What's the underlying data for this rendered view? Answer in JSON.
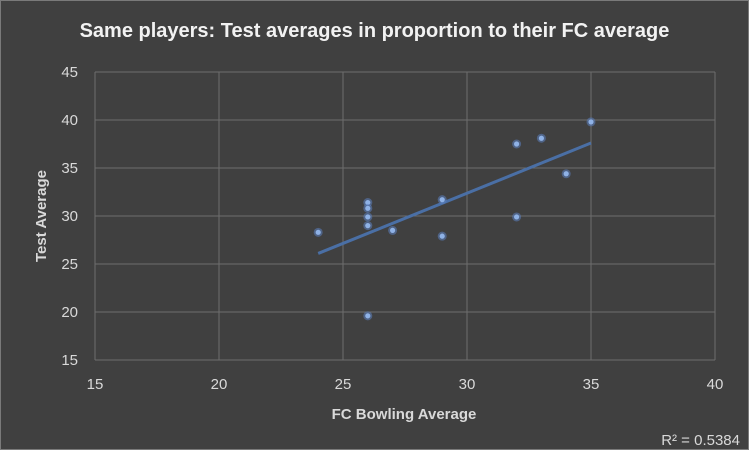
{
  "chart_data": {
    "type": "scatter",
    "title": "Same players: Test averages in proportion to their FC average",
    "xlabel": "FC Bowling Average",
    "ylabel": "Test Average",
    "xlim": [
      15,
      40
    ],
    "ylim": [
      15,
      45
    ],
    "xticks": [
      15,
      20,
      25,
      30,
      35,
      40
    ],
    "yticks": [
      15,
      20,
      25,
      30,
      35,
      40,
      45
    ],
    "grid": true,
    "points": [
      {
        "x": 24,
        "y": 28.3
      },
      {
        "x": 26,
        "y": 31.4
      },
      {
        "x": 26,
        "y": 30.8
      },
      {
        "x": 26,
        "y": 29.9
      },
      {
        "x": 26,
        "y": 29.0
      },
      {
        "x": 26,
        "y": 19.6
      },
      {
        "x": 27,
        "y": 28.5
      },
      {
        "x": 29,
        "y": 31.7
      },
      {
        "x": 29,
        "y": 27.9
      },
      {
        "x": 32,
        "y": 37.5
      },
      {
        "x": 32,
        "y": 29.9
      },
      {
        "x": 33,
        "y": 38.1
      },
      {
        "x": 34,
        "y": 34.4
      },
      {
        "x": 35,
        "y": 39.8
      }
    ],
    "trendline": {
      "type": "linear",
      "x": [
        24,
        35
      ],
      "y": [
        26.1,
        37.6
      ]
    },
    "r_squared_label": "R² = 0.5384",
    "colors": {
      "background": "#404040",
      "point": "#8fb2e6",
      "trendline": "#4a6fa5",
      "grid": "#6e6e6e",
      "text": "#d9d9d9"
    }
  }
}
